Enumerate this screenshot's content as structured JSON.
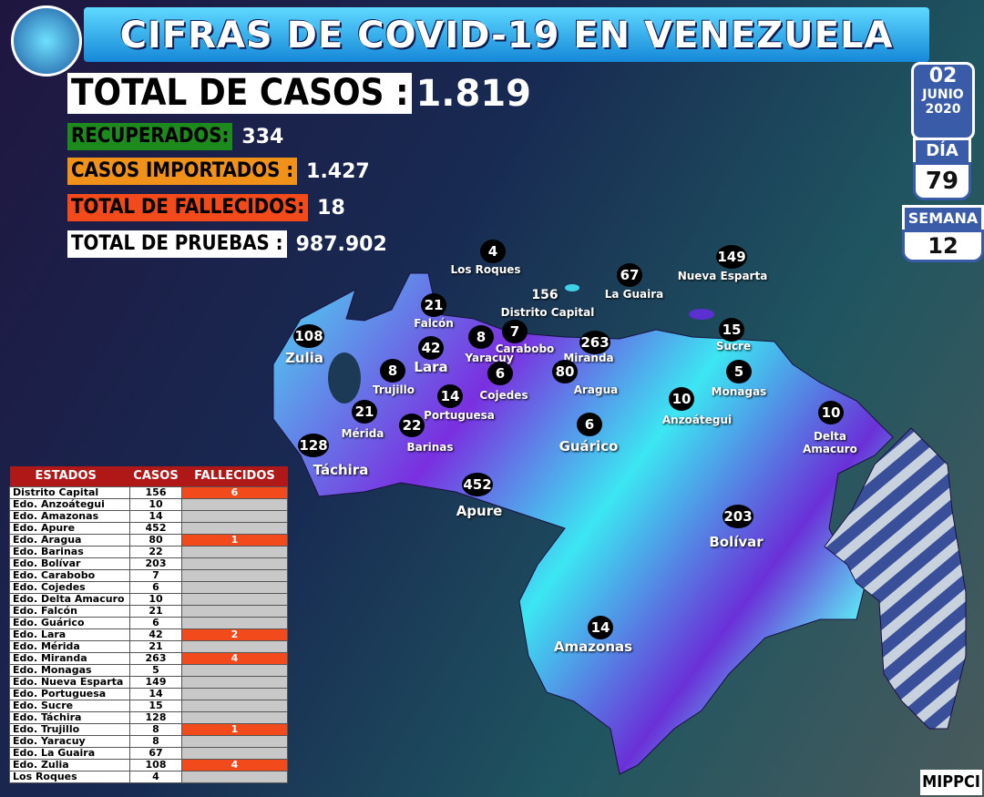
{
  "title": "CIFRAS DE COVID-19 EN VENEZUELA",
  "stats": [
    {
      "label": "TOTAL DE CASOS :",
      "value": "1.819"
    },
    {
      "label": "RECUPERADOS:",
      "value": "334"
    },
    {
      "label": "CASOS IMPORTADOS :",
      "value": "1.427"
    },
    {
      "label": "TOTAL DE FALLECIDOS:",
      "value": "18"
    },
    {
      "label": "TOTAL DE PRUEBAS :",
      "value": "987.902"
    }
  ],
  "date": {
    "day": "02",
    "month": "JUNIO",
    "year": "2020",
    "dia_label": "DÍA",
    "dia": "79",
    "semana_label": "SEMANA",
    "semana": "12"
  },
  "map_labels": [
    {
      "name": "Los Roques",
      "count": 4
    },
    {
      "name": "Distrito Capital",
      "count": 156
    },
    {
      "name": "La Guaira",
      "count": 67
    },
    {
      "name": "Nueva Esparta",
      "count": 149
    },
    {
      "name": "Falcón",
      "count": 21
    },
    {
      "name": "Zulia",
      "count": 108
    },
    {
      "name": "Carabobo",
      "count": 7
    },
    {
      "name": "Yaracuy",
      "count": 8
    },
    {
      "name": "Lara",
      "count": 42
    },
    {
      "name": "Miranda",
      "count": 263
    },
    {
      "name": "Sucre",
      "count": 15
    },
    {
      "name": "Trujillo",
      "count": 8
    },
    {
      "name": "Cojedes",
      "count": 6
    },
    {
      "name": "Aragua",
      "count": 80
    },
    {
      "name": "Monagas",
      "count": 5
    },
    {
      "name": "Portuguesa",
      "count": 14
    },
    {
      "name": "Anzoátegui",
      "count": 10
    },
    {
      "name": "Mérida",
      "count": 21
    },
    {
      "name": "Barinas",
      "count": 22
    },
    {
      "name": "Guárico",
      "count": 6
    },
    {
      "name": "Delta Amacuro",
      "count": 10
    },
    {
      "name": "Táchira",
      "count": 128
    },
    {
      "name": "Apure",
      "count": 452
    },
    {
      "name": "Bolívar",
      "count": 203
    },
    {
      "name": "Amazonas",
      "count": 14
    }
  ],
  "table": {
    "headers": [
      "ESTADOS",
      "CASOS",
      "FALLECIDOS"
    ],
    "rows": [
      [
        "Distrito Capital",
        156,
        6
      ],
      [
        "Edo. Anzoátegui",
        10,
        null
      ],
      [
        "Edo. Amazonas",
        14,
        null
      ],
      [
        "Edo. Apure",
        452,
        null
      ],
      [
        "Edo. Aragua",
        80,
        1
      ],
      [
        "Edo. Barinas",
        22,
        null
      ],
      [
        "Edo. Bolívar",
        203,
        null
      ],
      [
        "Edo. Carabobo",
        7,
        null
      ],
      [
        "Edo. Cojedes",
        6,
        null
      ],
      [
        "Edo. Delta Amacuro",
        10,
        null
      ],
      [
        "Edo. Falcón",
        21,
        null
      ],
      [
        "Edo. Guárico",
        6,
        null
      ],
      [
        "Edo. Lara",
        42,
        2
      ],
      [
        "Edo. Mérida",
        21,
        null
      ],
      [
        "Edo. Miranda",
        263,
        4
      ],
      [
        "Edo. Monagas",
        5,
        null
      ],
      [
        "Edo. Nueva Esparta",
        149,
        null
      ],
      [
        "Edo. Portuguesa",
        14,
        null
      ],
      [
        "Edo. Sucre",
        15,
        null
      ],
      [
        "Edo. Táchira",
        128,
        null
      ],
      [
        "Edo. Trujillo",
        8,
        1
      ],
      [
        "Edo. Yaracuy",
        8,
        null
      ],
      [
        "Edo. La Guaira",
        67,
        null
      ],
      [
        "Edo. Zulia",
        108,
        4
      ],
      [
        "Los Roques",
        4,
        null
      ]
    ]
  },
  "footer": "MIPPCI"
}
